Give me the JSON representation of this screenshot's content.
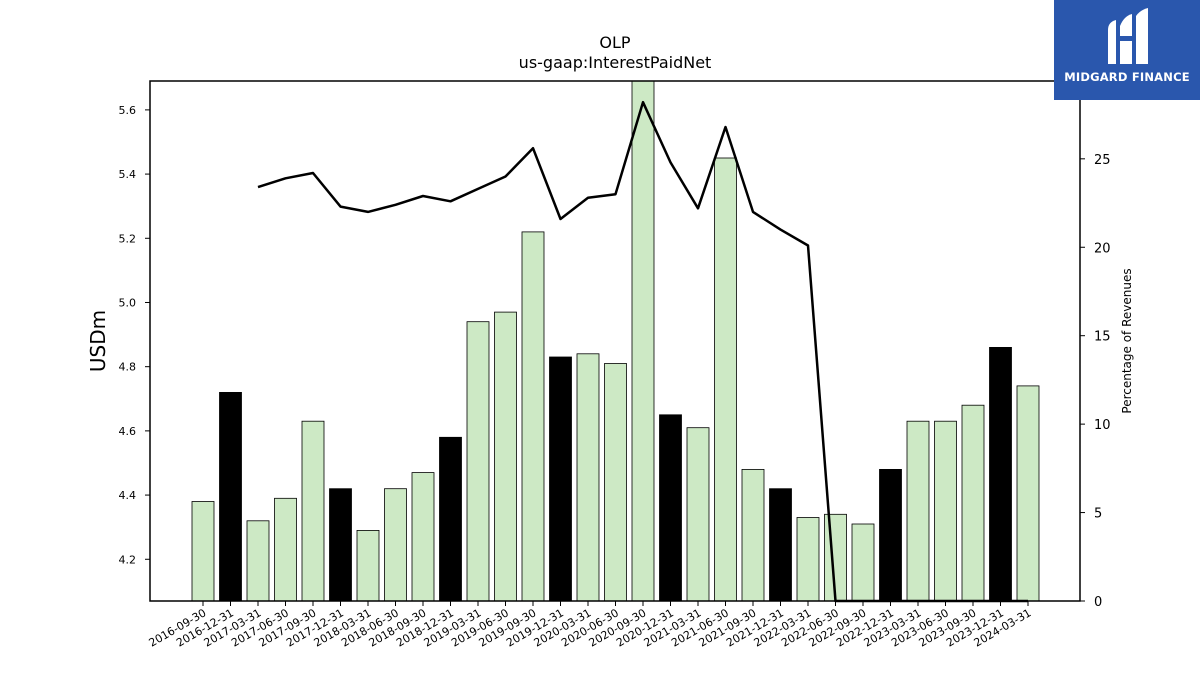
{
  "chart_data": {
    "type": "bar",
    "title": "OLP",
    "subtitle": "us-gaap:InterestPaidNet",
    "ylabel": "USDm",
    "y2label": "Percentage of Revenues",
    "ylim": [
      4.07,
      5.69
    ],
    "y2lim": [
      0,
      29.4
    ],
    "yticks": [
      4.2,
      4.4,
      4.6,
      4.8,
      5.0,
      5.2,
      5.4,
      5.6
    ],
    "ytick_labels": [
      "4.2",
      "4.4",
      "4.6",
      "4.8",
      "5.0",
      "5.2",
      "5.4",
      "5.6"
    ],
    "y2ticks": [
      0,
      5,
      10,
      15,
      20,
      25
    ],
    "y2tick_labels": [
      "0",
      "5",
      "10",
      "15",
      "20",
      "25"
    ],
    "categories": [
      "2016-09-30",
      "2016-12-31",
      "2017-03-31",
      "2017-06-30",
      "2017-09-30",
      "2017-12-31",
      "2018-03-31",
      "2018-06-30",
      "2018-09-30",
      "2018-12-31",
      "2019-03-31",
      "2019-06-30",
      "2019-09-30",
      "2019-12-31",
      "2020-03-31",
      "2020-06-30",
      "2020-09-30",
      "2020-12-31",
      "2021-03-31",
      "2021-06-30",
      "2021-09-30",
      "2021-12-31",
      "2022-03-31",
      "2022-06-30",
      "2022-09-30",
      "2022-12-31",
      "2023-03-31",
      "2023-06-30",
      "2023-09-30",
      "2023-12-31",
      "2024-03-31"
    ],
    "series": [
      {
        "kind": "bar",
        "axis": "left",
        "values": [
          4.38,
          4.72,
          4.32,
          4.39,
          4.63,
          4.42,
          4.29,
          4.42,
          4.47,
          4.58,
          4.94,
          4.97,
          5.22,
          4.83,
          4.84,
          4.81,
          5.69,
          4.65,
          4.61,
          5.45,
          4.48,
          4.42,
          4.33,
          4.34,
          4.31,
          4.48,
          4.63,
          4.63,
          4.68,
          4.86,
          4.74
        ],
        "highlight": [
          false,
          true,
          false,
          false,
          false,
          true,
          false,
          false,
          false,
          true,
          false,
          false,
          false,
          true,
          false,
          false,
          false,
          true,
          false,
          false,
          false,
          true,
          false,
          false,
          false,
          true,
          false,
          false,
          false,
          true,
          false
        ]
      },
      {
        "kind": "line",
        "axis": "right",
        "values": [
          null,
          null,
          23.4,
          23.9,
          24.2,
          22.3,
          22.0,
          22.4,
          22.9,
          22.6,
          23.3,
          24.0,
          25.6,
          21.6,
          22.8,
          23.0,
          28.2,
          24.8,
          22.2,
          26.8,
          22.0,
          21.0,
          20.1,
          0,
          0,
          0,
          0,
          0,
          0,
          0,
          0
        ]
      }
    ],
    "grid": false,
    "colors": {
      "bar": "#cde9c5",
      "bar_highlight": "#000000",
      "line": "#000000",
      "edge": "#000000"
    }
  },
  "logo": {
    "text": "MIDGARD FINANCE",
    "bg": "#2a57ad"
  }
}
